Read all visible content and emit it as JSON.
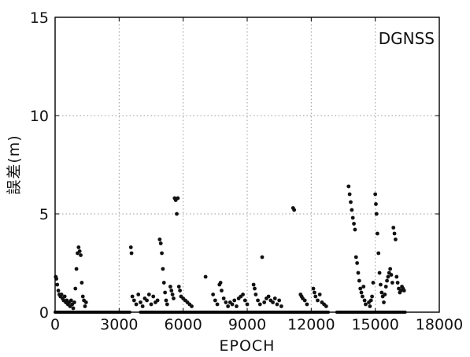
{
  "chart_data": {
    "type": "scatter",
    "title": "",
    "legend": "DGNSS",
    "legend_position": "top-right",
    "xlabel": "EPOCH",
    "ylabel": "誤差(m)",
    "xlim": [
      0,
      18000
    ],
    "ylim": [
      0,
      15
    ],
    "x_ticks": [
      0,
      3000,
      6000,
      9000,
      12000,
      15000,
      18000
    ],
    "x_tick_labels": [
      "0",
      "3000",
      "6000",
      "9000",
      "12000",
      "15000",
      "18000"
    ],
    "y_ticks": [
      0,
      5,
      10,
      15
    ],
    "y_tick_labels": [
      "0",
      "5",
      "10",
      "15"
    ],
    "grid": true,
    "marker_color": "#111111",
    "series": [
      {
        "name": "DGNSS",
        "points": [
          [
            30,
            1.8
          ],
          [
            60,
            1.7
          ],
          [
            100,
            1.4
          ],
          [
            150,
            1.1
          ],
          [
            200,
            0.9
          ],
          [
            250,
            0.8
          ],
          [
            300,
            0.9
          ],
          [
            350,
            0.7
          ],
          [
            400,
            0.6
          ],
          [
            450,
            0.8
          ],
          [
            500,
            0.5
          ],
          [
            550,
            0.6
          ],
          [
            600,
            0.4
          ],
          [
            650,
            0.5
          ],
          [
            700,
            0.3
          ],
          [
            750,
            0.6
          ],
          [
            800,
            0.4
          ],
          [
            850,
            0.2
          ],
          [
            900,
            0.5
          ],
          [
            950,
            1.2
          ],
          [
            1000,
            2.2
          ],
          [
            1050,
            3.0
          ],
          [
            1100,
            3.3
          ],
          [
            1150,
            3.1
          ],
          [
            1200,
            2.9
          ],
          [
            1250,
            1.5
          ],
          [
            1300,
            0.8
          ],
          [
            1350,
            0.6
          ],
          [
            1400,
            0.3
          ],
          [
            1450,
            0.5
          ],
          [
            3550,
            3.3
          ],
          [
            3580,
            3.0
          ],
          [
            3620,
            0.8
          ],
          [
            3700,
            0.6
          ],
          [
            3800,
            0.4
          ],
          [
            3900,
            0.9
          ],
          [
            4000,
            0.5
          ],
          [
            4100,
            0.3
          ],
          [
            4200,
            0.7
          ],
          [
            4300,
            0.6
          ],
          [
            4400,
            0.9
          ],
          [
            4500,
            0.4
          ],
          [
            4600,
            0.8
          ],
          [
            4700,
            0.5
          ],
          [
            4800,
            0.6
          ],
          [
            4900,
            3.7
          ],
          [
            4950,
            3.5
          ],
          [
            5000,
            3.0
          ],
          [
            5050,
            2.2
          ],
          [
            5100,
            1.5
          ],
          [
            5150,
            1.0
          ],
          [
            5200,
            0.6
          ],
          [
            5250,
            0.4
          ],
          [
            5400,
            1.3
          ],
          [
            5450,
            1.1
          ],
          [
            5500,
            0.9
          ],
          [
            5550,
            0.7
          ],
          [
            5600,
            5.8
          ],
          [
            5650,
            5.7
          ],
          [
            5700,
            5.0
          ],
          [
            5750,
            5.8
          ],
          [
            5800,
            1.3
          ],
          [
            5850,
            1.1
          ],
          [
            5900,
            0.8
          ],
          [
            6000,
            0.7
          ],
          [
            6100,
            0.6
          ],
          [
            6200,
            0.5
          ],
          [
            6300,
            0.4
          ],
          [
            6400,
            0.3
          ],
          [
            7050,
            1.8
          ],
          [
            7400,
            0.9
          ],
          [
            7500,
            0.6
          ],
          [
            7600,
            0.4
          ],
          [
            7700,
            1.4
          ],
          [
            7750,
            1.5
          ],
          [
            7800,
            1.1
          ],
          [
            7900,
            0.7
          ],
          [
            8000,
            0.5
          ],
          [
            8100,
            0.3
          ],
          [
            8200,
            0.5
          ],
          [
            8300,
            0.4
          ],
          [
            8400,
            0.6
          ],
          [
            8500,
            0.3
          ],
          [
            8600,
            0.7
          ],
          [
            8700,
            0.8
          ],
          [
            8800,
            0.9
          ],
          [
            8900,
            0.6
          ],
          [
            9000,
            0.4
          ],
          [
            9300,
            1.4
          ],
          [
            9350,
            1.2
          ],
          [
            9400,
            0.9
          ],
          [
            9500,
            0.6
          ],
          [
            9600,
            0.4
          ],
          [
            9700,
            2.8
          ],
          [
            9800,
            0.5
          ],
          [
            9900,
            0.7
          ],
          [
            10000,
            0.8
          ],
          [
            10100,
            0.6
          ],
          [
            10200,
            0.5
          ],
          [
            10300,
            0.7
          ],
          [
            10400,
            0.4
          ],
          [
            10500,
            0.6
          ],
          [
            10600,
            0.3
          ],
          [
            11150,
            5.3
          ],
          [
            11200,
            5.2
          ],
          [
            11500,
            0.9
          ],
          [
            11550,
            0.8
          ],
          [
            11600,
            0.7
          ],
          [
            11700,
            0.6
          ],
          [
            11800,
            0.4
          ],
          [
            12100,
            1.2
          ],
          [
            12150,
            1.0
          ],
          [
            12200,
            0.8
          ],
          [
            12300,
            0.6
          ],
          [
            12400,
            0.9
          ],
          [
            12500,
            0.5
          ],
          [
            12600,
            0.4
          ],
          [
            12700,
            0.3
          ],
          [
            13750,
            6.4
          ],
          [
            13800,
            6.0
          ],
          [
            13850,
            5.6
          ],
          [
            13900,
            5.2
          ],
          [
            13950,
            4.8
          ],
          [
            14000,
            4.5
          ],
          [
            14050,
            4.2
          ],
          [
            14100,
            2.8
          ],
          [
            14150,
            2.5
          ],
          [
            14200,
            2.0
          ],
          [
            14250,
            1.6
          ],
          [
            14300,
            1.2
          ],
          [
            14350,
            1.0
          ],
          [
            14400,
            0.8
          ],
          [
            14450,
            1.3
          ],
          [
            14500,
            0.6
          ],
          [
            14550,
            0.4
          ],
          [
            14700,
            0.5
          ],
          [
            14750,
            0.3
          ],
          [
            14800,
            0.6
          ],
          [
            14850,
            0.8
          ],
          [
            14900,
            1.5
          ],
          [
            15000,
            6.0
          ],
          [
            15030,
            5.5
          ],
          [
            15060,
            5.0
          ],
          [
            15100,
            4.0
          ],
          [
            15150,
            3.0
          ],
          [
            15200,
            2.0
          ],
          [
            15250,
            1.4
          ],
          [
            15300,
            1.0
          ],
          [
            15350,
            0.8
          ],
          [
            15400,
            0.5
          ],
          [
            15450,
            0.9
          ],
          [
            15500,
            1.3
          ],
          [
            15550,
            1.6
          ],
          [
            15600,
            1.8
          ],
          [
            15650,
            2.0
          ],
          [
            15700,
            2.2
          ],
          [
            15750,
            1.9
          ],
          [
            15800,
            1.5
          ],
          [
            15850,
            4.3
          ],
          [
            15900,
            4.0
          ],
          [
            15950,
            3.7
          ],
          [
            16000,
            1.8
          ],
          [
            16050,
            1.5
          ],
          [
            16100,
            1.2
          ],
          [
            16150,
            1.0
          ],
          [
            16200,
            1.1
          ],
          [
            16250,
            1.3
          ],
          [
            16300,
            1.2
          ],
          [
            16350,
            1.1
          ]
        ],
        "baseline_segments": [
          [
            0,
            3500
          ],
          [
            4000,
            12800
          ],
          [
            13200,
            16400
          ]
        ],
        "baseline_value": 0
      }
    ]
  }
}
